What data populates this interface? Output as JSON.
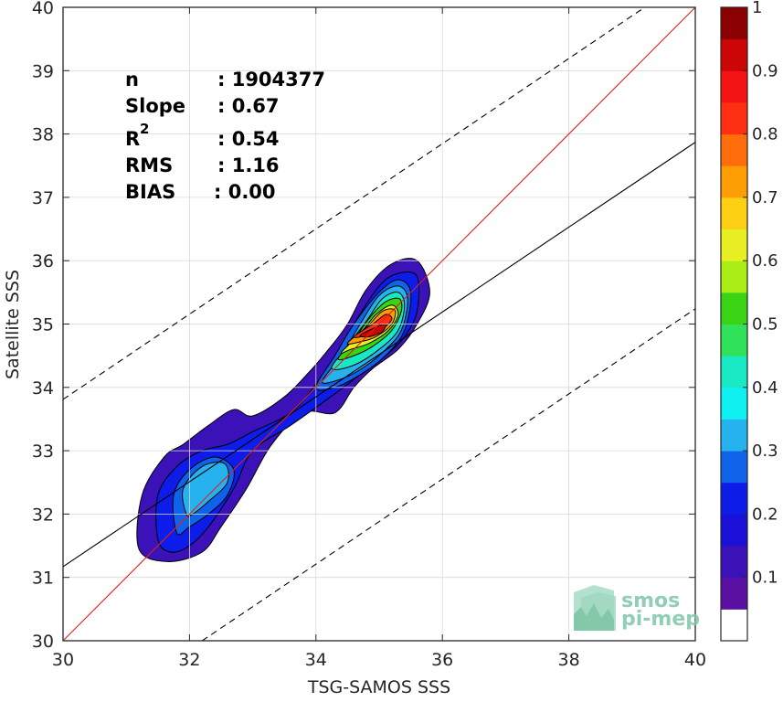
{
  "chart_data": {
    "type": "contour",
    "xlabel": "TSG-SAMOS SSS",
    "ylabel": "Satellite SSS",
    "xlim": [
      30,
      40
    ],
    "ylim": [
      30,
      40
    ],
    "x_ticks": [
      "30",
      "32",
      "34",
      "36",
      "38",
      "40"
    ],
    "y_ticks": [
      "30",
      "31",
      "32",
      "33",
      "34",
      "35",
      "36",
      "37",
      "38",
      "39",
      "40"
    ],
    "grid": true,
    "stats": [
      {
        "label": "n",
        "value": ": 1904377"
      },
      {
        "label": "Slope",
        "value": ": 0.67"
      },
      {
        "label": "R",
        "sup": "2",
        "value": ": 0.54"
      },
      {
        "label": "RMS",
        "value": ": 1.16"
      },
      {
        "label": "BIAS",
        "value": ": 0.00"
      }
    ],
    "reference_lines": {
      "identity": {
        "from": [
          30,
          30
        ],
        "to": [
          40,
          40
        ],
        "color": "#e0201b"
      },
      "fit": {
        "from": [
          30,
          31.17
        ],
        "to": [
          40,
          37.87
        ],
        "color": "#000000"
      },
      "upper_bound": {
        "from": [
          30,
          33.81
        ],
        "to": [
          39.2,
          40
        ],
        "style": "dashed"
      },
      "lower_bound": {
        "from": [
          32.2,
          30
        ],
        "to": [
          40,
          35.24
        ],
        "style": "dashed"
      }
    },
    "density_levels": [
      {
        "level": 0.05,
        "color": "#3a12b8",
        "blobs": [
          [
            [
              31.65,
              31.25
            ],
            [
              31.2,
              31.45
            ],
            [
              31.25,
              32.3
            ],
            [
              31.6,
              32.9
            ],
            [
              31.9,
              33.1
            ],
            [
              32.3,
              33.4
            ],
            [
              32.7,
              33.65
            ],
            [
              33.0,
              33.55
            ],
            [
              33.5,
              33.85
            ],
            [
              33.9,
              34.25
            ],
            [
              34.2,
              34.6
            ],
            [
              34.5,
              35.0
            ],
            [
              34.8,
              35.55
            ],
            [
              35.2,
              35.95
            ],
            [
              35.6,
              36.0
            ],
            [
              35.8,
              35.5
            ],
            [
              35.6,
              35.0
            ],
            [
              35.3,
              34.6
            ],
            [
              34.9,
              34.3
            ],
            [
              34.6,
              34.0
            ],
            [
              34.3,
              33.6
            ],
            [
              33.8,
              33.6
            ],
            [
              33.3,
              33.1
            ],
            [
              32.9,
              32.4
            ],
            [
              32.5,
              31.8
            ],
            [
              32.2,
              31.4
            ]
          ]
        ]
      },
      {
        "level": 0.1,
        "color": "#0d1ce8",
        "blobs": [
          [
            [
              31.7,
              31.4
            ],
            [
              31.5,
              31.6
            ],
            [
              31.5,
              32.3
            ],
            [
              31.8,
              32.75
            ],
            [
              32.2,
              33.0
            ],
            [
              32.6,
              33.1
            ],
            [
              33.0,
              33.3
            ],
            [
              33.6,
              33.6
            ],
            [
              34.0,
              34.05
            ],
            [
              34.3,
              34.5
            ],
            [
              34.6,
              35.0
            ],
            [
              35.0,
              35.6
            ],
            [
              35.3,
              35.8
            ],
            [
              35.6,
              35.75
            ],
            [
              35.6,
              35.2
            ],
            [
              35.4,
              34.8
            ],
            [
              35.1,
              34.5
            ],
            [
              34.7,
              34.2
            ],
            [
              34.3,
              33.9
            ],
            [
              33.6,
              33.4
            ],
            [
              33.0,
              33.0
            ],
            [
              32.7,
              32.4
            ],
            [
              32.3,
              31.8
            ],
            [
              32.0,
              31.5
            ]
          ]
        ]
      },
      {
        "level": 0.2,
        "color": "#0f63ea",
        "blobs": [
          [
            [
              31.8,
              31.7
            ],
            [
              31.75,
              32.3
            ],
            [
              32.0,
              32.7
            ],
            [
              32.4,
              32.9
            ],
            [
              32.7,
              32.7
            ],
            [
              32.6,
              32.3
            ],
            [
              32.3,
              32.0
            ],
            [
              32.0,
              31.8
            ]
          ],
          [
            [
              34.0,
              34.0
            ],
            [
              34.3,
              34.5
            ],
            [
              34.6,
              35.0
            ],
            [
              35.0,
              35.5
            ],
            [
              35.3,
              35.7
            ],
            [
              35.5,
              35.5
            ],
            [
              35.4,
              34.9
            ],
            [
              35.1,
              34.5
            ],
            [
              34.7,
              34.2
            ],
            [
              34.3,
              34.0
            ]
          ]
        ]
      },
      {
        "level": 0.3,
        "color": "#26b2ef",
        "blobs": [
          [
            [
              31.95,
              32.0
            ],
            [
              31.9,
              32.4
            ],
            [
              32.2,
              32.75
            ],
            [
              32.55,
              32.8
            ],
            [
              32.6,
              32.5
            ],
            [
              32.3,
              32.2
            ],
            [
              32.05,
              32.0
            ]
          ],
          [
            [
              34.1,
              34.1
            ],
            [
              34.4,
              34.5
            ],
            [
              34.7,
              35.0
            ],
            [
              35.0,
              35.45
            ],
            [
              35.3,
              35.6
            ],
            [
              35.45,
              35.4
            ],
            [
              35.35,
              34.9
            ],
            [
              35.05,
              34.55
            ],
            [
              34.65,
              34.25
            ],
            [
              34.3,
              34.1
            ]
          ]
        ]
      },
      {
        "level": 0.4,
        "color": "#19e8c4",
        "blobs": [
          [
            [
              34.25,
              34.3
            ],
            [
              34.5,
              34.65
            ],
            [
              34.8,
              35.05
            ],
            [
              35.05,
              35.4
            ],
            [
              35.3,
              35.5
            ],
            [
              35.4,
              35.3
            ],
            [
              35.3,
              34.9
            ],
            [
              35.0,
              34.6
            ],
            [
              34.6,
              34.35
            ]
          ]
        ]
      },
      {
        "level": 0.5,
        "color": "#39d414",
        "blobs": [
          [
            [
              34.35,
              34.45
            ],
            [
              34.6,
              34.75
            ],
            [
              34.85,
              35.1
            ],
            [
              35.1,
              35.35
            ],
            [
              35.32,
              35.4
            ],
            [
              35.35,
              35.2
            ],
            [
              35.2,
              34.9
            ],
            [
              34.9,
              34.65
            ],
            [
              34.6,
              34.5
            ]
          ]
        ]
      },
      {
        "level": 0.6,
        "color": "#e8f023",
        "blobs": [
          [
            [
              34.4,
              34.55
            ],
            [
              34.7,
              34.85
            ],
            [
              34.95,
              35.15
            ],
            [
              35.2,
              35.3
            ],
            [
              35.3,
              35.15
            ],
            [
              35.15,
              34.9
            ],
            [
              34.85,
              34.7
            ],
            [
              34.55,
              34.6
            ]
          ]
        ]
      },
      {
        "level": 0.7,
        "color": "#ff9d05",
        "blobs": [
          [
            [
              34.5,
              34.7
            ],
            [
              34.8,
              34.95
            ],
            [
              35.05,
              35.2
            ],
            [
              35.25,
              35.22
            ],
            [
              35.2,
              35.0
            ],
            [
              34.95,
              34.8
            ],
            [
              34.7,
              34.72
            ]
          ]
        ]
      },
      {
        "level": 0.8,
        "color": "#ff3012",
        "blobs": [
          [
            [
              34.6,
              34.8
            ],
            [
              34.9,
              35.0
            ],
            [
              35.1,
              35.15
            ],
            [
              35.2,
              35.08
            ],
            [
              35.05,
              34.92
            ],
            [
              34.8,
              34.82
            ]
          ]
        ]
      },
      {
        "level": 0.9,
        "color": "#cc0505",
        "blobs": [
          [
            [
              34.7,
              34.82
            ],
            [
              34.95,
              34.95
            ],
            [
              35.1,
              35.0
            ],
            [
              35.05,
              34.88
            ],
            [
              34.85,
              34.8
            ]
          ]
        ]
      }
    ],
    "colorbar": {
      "range": [
        0,
        1
      ],
      "ticks": [
        "0.1",
        "0.2",
        "0.3",
        "0.4",
        "0.5",
        "0.6",
        "0.7",
        "0.8",
        "0.9",
        "1"
      ],
      "colors": [
        "#ffffff",
        "#5a10a3",
        "#3a12b8",
        "#1a10d8",
        "#0d1ce8",
        "#0f63ea",
        "#26b2ef",
        "#0ff0f0",
        "#19e8c4",
        "#2fe25a",
        "#39d414",
        "#a8ee14",
        "#e8f023",
        "#fed014",
        "#ff9d05",
        "#ff6e0a",
        "#ff3012",
        "#f51414",
        "#cc0505",
        "#8b0000"
      ]
    },
    "watermark": {
      "line1": "smos",
      "line2": "pi-mep",
      "color": "#7fc6a8"
    }
  }
}
